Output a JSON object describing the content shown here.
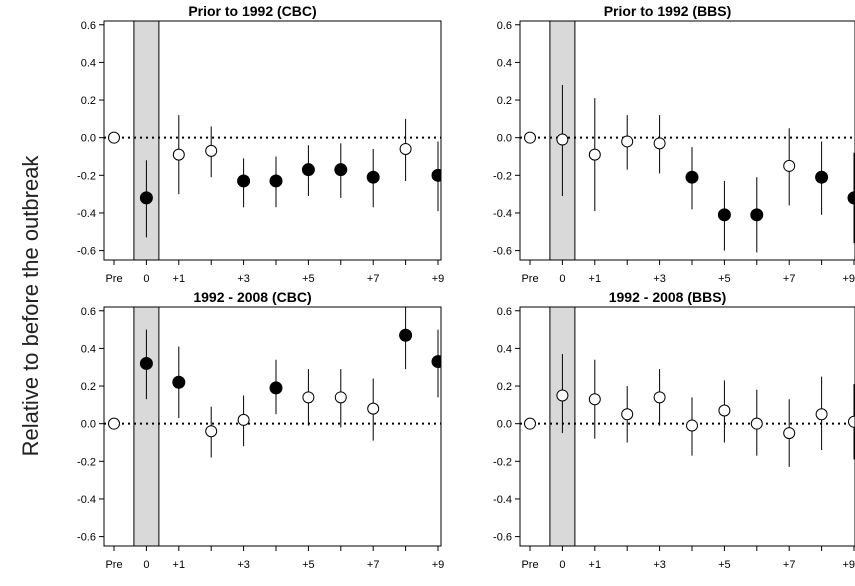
{
  "figure": {
    "ylabel": "Relative to before the outbreak"
  },
  "chart_data": [
    {
      "type": "scatter",
      "title": "Prior to 1992 (CBC)",
      "xlabel": "",
      "ylabel": "",
      "x_tick_labels": [
        "Pre",
        "0",
        "+1",
        "+3",
        "+5",
        "+7",
        "+9"
      ],
      "x_tick_positions": [
        -1,
        0,
        1,
        3,
        5,
        7,
        9
      ],
      "y_tick_labels": [
        "-0.6",
        "-0.4",
        "-0.2",
        "0.0",
        "0.2",
        "0.4",
        "0.6"
      ],
      "ylim": [
        -0.65,
        0.62
      ],
      "shaded_x": 0,
      "reference_line_y": 0,
      "points": [
        {
          "x": -1,
          "y": 0.0,
          "low": 0.0,
          "high": 0.0,
          "filled": false
        },
        {
          "x": 0,
          "y": -0.32,
          "low": -0.53,
          "high": -0.12,
          "filled": true
        },
        {
          "x": 1,
          "y": -0.09,
          "low": -0.3,
          "high": 0.12,
          "filled": false
        },
        {
          "x": 2,
          "y": -0.07,
          "low": -0.21,
          "high": 0.06,
          "filled": false
        },
        {
          "x": 3,
          "y": -0.23,
          "low": -0.37,
          "high": -0.11,
          "filled": true
        },
        {
          "x": 4,
          "y": -0.23,
          "low": -0.37,
          "high": -0.1,
          "filled": true
        },
        {
          "x": 5,
          "y": -0.17,
          "low": -0.31,
          "high": -0.04,
          "filled": true
        },
        {
          "x": 6,
          "y": -0.17,
          "low": -0.32,
          "high": -0.03,
          "filled": true
        },
        {
          "x": 7,
          "y": -0.21,
          "low": -0.37,
          "high": -0.06,
          "filled": true
        },
        {
          "x": 8,
          "y": -0.06,
          "low": -0.23,
          "high": 0.1,
          "filled": false
        },
        {
          "x": 9,
          "y": -0.2,
          "low": -0.39,
          "high": -0.02,
          "filled": true
        }
      ]
    },
    {
      "type": "scatter",
      "title": "Prior to 1992 (BBS)",
      "xlabel": "",
      "ylabel": "",
      "x_tick_labels": [
        "Pre",
        "0",
        "+1",
        "+3",
        "+5",
        "+7",
        "+9"
      ],
      "x_tick_positions": [
        -1,
        0,
        1,
        3,
        5,
        7,
        9
      ],
      "y_tick_labels": [
        "-0.6",
        "-0.4",
        "-0.2",
        "0.0",
        "0.2",
        "0.4",
        "0.6"
      ],
      "ylim": [
        -0.65,
        0.62
      ],
      "shaded_x": 0,
      "reference_line_y": 0,
      "points": [
        {
          "x": -1,
          "y": 0.0,
          "low": 0.0,
          "high": 0.0,
          "filled": false
        },
        {
          "x": 0,
          "y": -0.01,
          "low": -0.31,
          "high": 0.28,
          "filled": false
        },
        {
          "x": 1,
          "y": -0.09,
          "low": -0.39,
          "high": 0.21,
          "filled": false
        },
        {
          "x": 2,
          "y": -0.02,
          "low": -0.17,
          "high": 0.12,
          "filled": false
        },
        {
          "x": 3,
          "y": -0.03,
          "low": -0.19,
          "high": 0.12,
          "filled": false
        },
        {
          "x": 4,
          "y": -0.21,
          "low": -0.38,
          "high": -0.05,
          "filled": true
        },
        {
          "x": 5,
          "y": -0.41,
          "low": -0.6,
          "high": -0.23,
          "filled": true
        },
        {
          "x": 6,
          "y": -0.41,
          "low": -0.61,
          "high": -0.21,
          "filled": true
        },
        {
          "x": 7,
          "y": -0.15,
          "low": -0.36,
          "high": 0.05,
          "filled": false
        },
        {
          "x": 8,
          "y": -0.21,
          "low": -0.41,
          "high": -0.02,
          "filled": true
        },
        {
          "x": 9,
          "y": -0.32,
          "low": -0.56,
          "high": -0.08,
          "filled": true
        }
      ]
    },
    {
      "type": "scatter",
      "title": "1992 - 2008 (CBC)",
      "xlabel": "",
      "ylabel": "",
      "x_tick_labels": [
        "Pre",
        "0",
        "+1",
        "+3",
        "+5",
        "+7",
        "+9"
      ],
      "x_tick_positions": [
        -1,
        0,
        1,
        3,
        5,
        7,
        9
      ],
      "y_tick_labels": [
        "-0.6",
        "-0.4",
        "-0.2",
        "0.0",
        "0.2",
        "0.4",
        "0.6"
      ],
      "ylim": [
        -0.65,
        0.62
      ],
      "shaded_x": 0,
      "reference_line_y": 0,
      "points": [
        {
          "x": -1,
          "y": 0.0,
          "low": 0.0,
          "high": 0.0,
          "filled": false
        },
        {
          "x": 0,
          "y": 0.32,
          "low": 0.13,
          "high": 0.5,
          "filled": true
        },
        {
          "x": 1,
          "y": 0.22,
          "low": 0.03,
          "high": 0.41,
          "filled": true
        },
        {
          "x": 2,
          "y": -0.04,
          "low": -0.18,
          "high": 0.09,
          "filled": false
        },
        {
          "x": 3,
          "y": 0.02,
          "low": -0.12,
          "high": 0.15,
          "filled": false
        },
        {
          "x": 4,
          "y": 0.19,
          "low": 0.05,
          "high": 0.34,
          "filled": true
        },
        {
          "x": 5,
          "y": 0.14,
          "low": -0.01,
          "high": 0.29,
          "filled": false
        },
        {
          "x": 6,
          "y": 0.14,
          "low": -0.02,
          "high": 0.29,
          "filled": false
        },
        {
          "x": 7,
          "y": 0.08,
          "low": -0.09,
          "high": 0.24,
          "filled": false
        },
        {
          "x": 8,
          "y": 0.47,
          "low": 0.29,
          "high": 0.66,
          "filled": true
        },
        {
          "x": 9,
          "y": 0.33,
          "low": 0.14,
          "high": 0.5,
          "filled": true
        }
      ]
    },
    {
      "type": "scatter",
      "title": "1992 - 2008 (BBS)",
      "xlabel": "",
      "ylabel": "",
      "x_tick_labels": [
        "Pre",
        "0",
        "+1",
        "+3",
        "+5",
        "+7",
        "+9"
      ],
      "x_tick_positions": [
        -1,
        0,
        1,
        3,
        5,
        7,
        9
      ],
      "y_tick_labels": [
        "-0.6",
        "-0.4",
        "-0.2",
        "0.0",
        "0.2",
        "0.4",
        "0.6"
      ],
      "ylim": [
        -0.65,
        0.62
      ],
      "shaded_x": 0,
      "reference_line_y": 0,
      "points": [
        {
          "x": -1,
          "y": 0.0,
          "low": 0.0,
          "high": 0.0,
          "filled": false
        },
        {
          "x": 0,
          "y": 0.15,
          "low": -0.05,
          "high": 0.37,
          "filled": false
        },
        {
          "x": 1,
          "y": 0.13,
          "low": -0.08,
          "high": 0.34,
          "filled": false
        },
        {
          "x": 2,
          "y": 0.05,
          "low": -0.1,
          "high": 0.2,
          "filled": false
        },
        {
          "x": 3,
          "y": 0.14,
          "low": -0.01,
          "high": 0.29,
          "filled": false
        },
        {
          "x": 4,
          "y": -0.01,
          "low": -0.17,
          "high": 0.14,
          "filled": false
        },
        {
          "x": 5,
          "y": 0.07,
          "low": -0.1,
          "high": 0.23,
          "filled": false
        },
        {
          "x": 6,
          "y": 0.0,
          "low": -0.17,
          "high": 0.18,
          "filled": false
        },
        {
          "x": 7,
          "y": -0.05,
          "low": -0.23,
          "high": 0.13,
          "filled": false
        },
        {
          "x": 8,
          "y": 0.05,
          "low": -0.14,
          "high": 0.25,
          "filled": false
        },
        {
          "x": 9,
          "y": 0.01,
          "low": -0.19,
          "high": 0.21,
          "filled": false
        }
      ]
    }
  ]
}
